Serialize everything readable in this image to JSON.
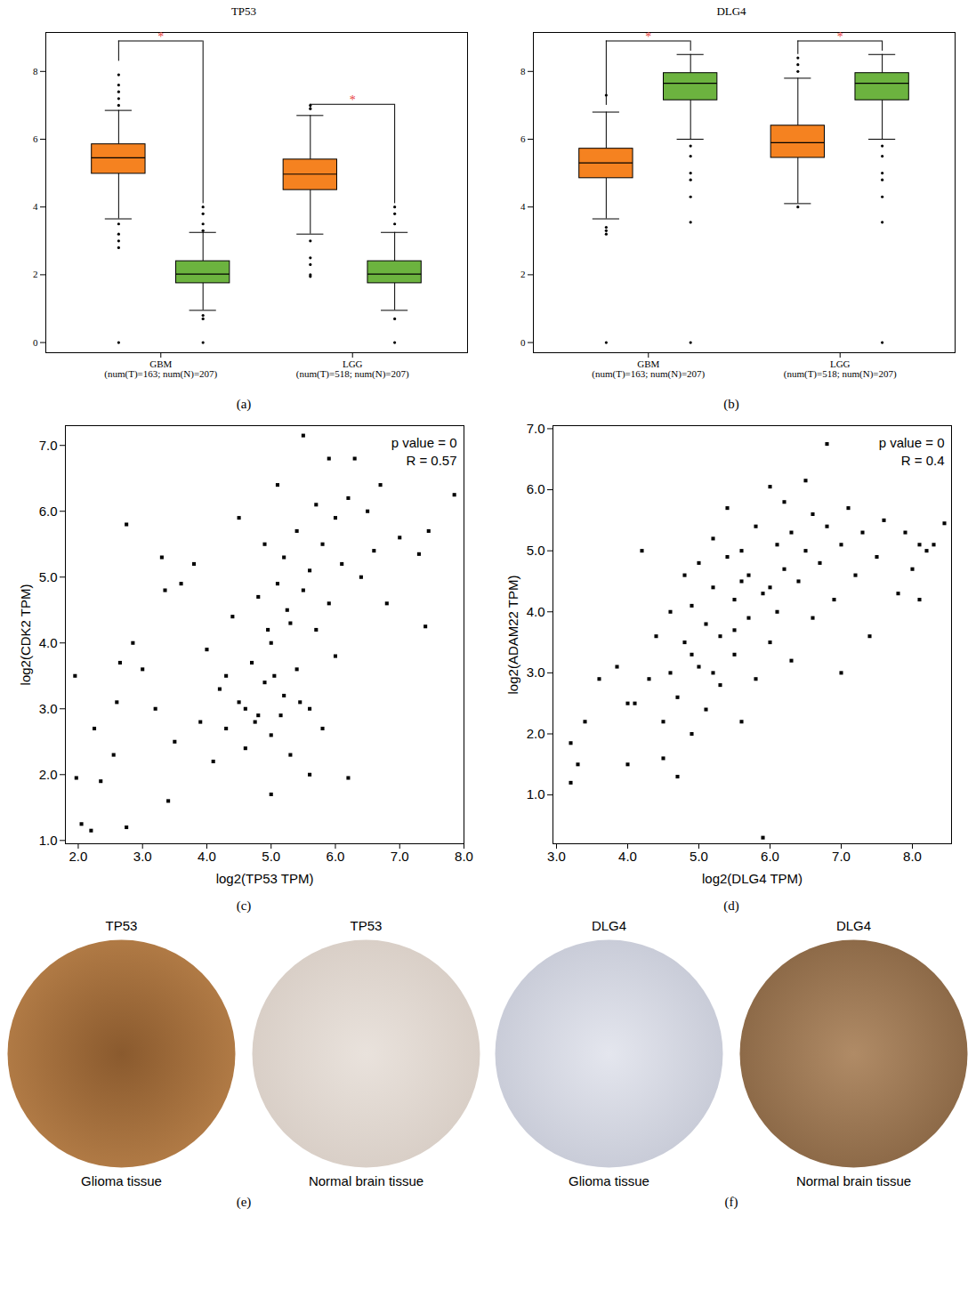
{
  "chart_data": [
    {
      "type": "box",
      "panel": "(a)",
      "title": "TP53",
      "categories": [
        "GBM",
        "LGG"
      ],
      "category_notes": [
        "(num(T)=163; num(N)=207)",
        "(num(T)=518; num(N)=207)"
      ],
      "ylim": [
        -0.3,
        9.15
      ],
      "yticks": [
        0,
        2,
        4,
        6,
        8
      ],
      "grid": false,
      "groups": [
        {
          "category": "GBM",
          "boxes": [
            {
              "color": "#f58220",
              "whisker_low": 3.65,
              "q1": 4.98,
              "median": 5.45,
              "q3": 5.85,
              "whisker_high": 6.85,
              "outliers": [
                7.9,
                7.6,
                7.4,
                7.2,
                7.0,
                3.5,
                3.2,
                3.0,
                2.8,
                0
              ]
            },
            {
              "color": "#6cb33f",
              "whisker_low": 0.95,
              "q1": 1.75,
              "median": 2.02,
              "q3": 2.4,
              "whisker_high": 3.25,
              "outliers": [
                4.0,
                3.8,
                3.5,
                3.3,
                0.8,
                0.7,
                0
              ]
            }
          ],
          "bracket": {
            "y": 8.9,
            "left_end": 8.3,
            "right_end": 4.1,
            "label": "*",
            "color": "#e8413c"
          }
        },
        {
          "category": "LGG",
          "boxes": [
            {
              "color": "#f58220",
              "whisker_low": 3.2,
              "q1": 4.5,
              "median": 4.97,
              "q3": 5.4,
              "whisker_high": 6.7,
              "outliers": [
                7.0,
                6.9,
                3.0,
                2.5,
                2.3,
                2.0,
                1.95
              ]
            },
            {
              "color": "#6cb33f",
              "whisker_low": 0.95,
              "q1": 1.75,
              "median": 2.02,
              "q3": 2.4,
              "whisker_high": 3.25,
              "outliers": [
                4.0,
                3.8,
                3.5,
                0.7,
                0
              ]
            }
          ],
          "bracket": {
            "y": 7.03,
            "left_end": 6.85,
            "right_end": 4.1,
            "label": "*",
            "color": "#e8413c"
          }
        }
      ]
    },
    {
      "type": "box",
      "panel": "(b)",
      "title": "DLG4",
      "categories": [
        "GBM",
        "LGG"
      ],
      "category_notes": [
        "(num(T)=163; num(N)=207)",
        "(num(T)=518; num(N)=207)"
      ],
      "ylim": [
        -0.3,
        9.15
      ],
      "yticks": [
        0,
        2,
        4,
        6,
        8
      ],
      "grid": false,
      "groups": [
        {
          "category": "GBM",
          "boxes": [
            {
              "color": "#f58220",
              "whisker_low": 3.65,
              "q1": 4.85,
              "median": 5.3,
              "q3": 5.72,
              "whisker_high": 6.8,
              "outliers": [
                7.3,
                3.4,
                3.3,
                3.2,
                0
              ]
            },
            {
              "color": "#6cb33f",
              "whisker_low": 6.0,
              "q1": 7.15,
              "median": 7.65,
              "q3": 7.95,
              "whisker_high": 8.5,
              "outliers": [
                5.8,
                5.5,
                5.0,
                4.8,
                4.3,
                3.55,
                0
              ]
            }
          ],
          "bracket": {
            "y": 8.9,
            "left_end": 7.0,
            "right_end": 8.6,
            "label": "*",
            "color": "#e8413c"
          }
        },
        {
          "category": "LGG",
          "boxes": [
            {
              "color": "#f58220",
              "whisker_low": 4.1,
              "q1": 5.45,
              "median": 5.9,
              "q3": 6.4,
              "whisker_high": 7.8,
              "outliers": [
                8.4,
                8.2,
                8.0,
                4.0
              ]
            },
            {
              "color": "#6cb33f",
              "whisker_low": 6.0,
              "q1": 7.15,
              "median": 7.65,
              "q3": 7.95,
              "whisker_high": 8.5,
              "outliers": [
                5.8,
                5.5,
                5.0,
                4.8,
                4.3,
                3.55,
                0
              ]
            }
          ],
          "bracket": {
            "y": 8.9,
            "left_end": 8.5,
            "right_end": 8.6,
            "label": "*",
            "color": "#e8413c"
          }
        }
      ]
    },
    {
      "type": "scatter",
      "panel": "(c)",
      "x_label": "log2(TP53 TPM)",
      "y_label": "log2(CDK2 TPM)",
      "annotations": [
        "p value = 0",
        "R = 0.57"
      ],
      "marker": "square",
      "color": "#000000",
      "grid": false,
      "xlim": [
        1.8,
        8.0
      ],
      "xticks": [
        2,
        3,
        4,
        5,
        6,
        7,
        8
      ],
      "ylim": [
        0.95,
        7.3
      ],
      "yticks": [
        1,
        2,
        3,
        4,
        5,
        6,
        7
      ],
      "x": [
        1.95,
        1.97,
        2.05,
        2.2,
        2.25,
        2.35,
        2.55,
        2.6,
        2.65,
        2.75,
        2.75,
        2.85,
        3.0,
        3.2,
        3.3,
        3.35,
        3.4,
        3.5,
        3.6,
        3.8,
        3.9,
        4.0,
        4.1,
        4.2,
        4.3,
        4.4,
        4.5,
        4.5,
        4.6,
        4.7,
        4.8,
        4.8,
        4.9,
        4.9,
        5.0,
        5.0,
        5.1,
        5.1,
        5.2,
        5.2,
        5.3,
        5.3,
        5.4,
        5.4,
        5.5,
        5.5,
        5.6,
        5.6,
        5.7,
        5.7,
        5.8,
        5.8,
        5.9,
        5.9,
        6.0,
        6.0,
        6.1,
        6.2,
        6.2,
        6.3,
        6.4,
        6.5,
        6.6,
        6.7,
        6.8,
        7.0,
        7.3,
        7.4,
        7.45,
        7.85,
        4.6,
        5.05,
        5.25,
        4.75,
        5.45,
        4.95,
        5.15,
        4.3,
        5.6,
        5.0
      ],
      "y": [
        3.5,
        1.95,
        1.25,
        1.15,
        2.7,
        1.9,
        2.3,
        3.1,
        3.7,
        1.2,
        5.8,
        4.0,
        3.6,
        3.0,
        5.3,
        4.8,
        1.6,
        2.5,
        4.9,
        5.2,
        2.8,
        3.9,
        2.2,
        3.3,
        2.7,
        4.4,
        5.9,
        3.1,
        2.4,
        3.7,
        4.7,
        2.9,
        5.5,
        3.4,
        4.0,
        2.6,
        6.4,
        4.9,
        3.2,
        5.3,
        4.3,
        2.3,
        5.7,
        3.6,
        7.15,
        4.8,
        3.0,
        5.1,
        6.1,
        4.2,
        5.5,
        2.7,
        6.8,
        4.6,
        5.9,
        3.8,
        5.2,
        6.2,
        1.95,
        6.8,
        5.0,
        6.0,
        5.4,
        6.4,
        4.6,
        5.6,
        5.35,
        4.25,
        5.7,
        6.25,
        3.0,
        3.5,
        4.5,
        2.8,
        3.1,
        4.2,
        2.9,
        3.5,
        2.0,
        1.7
      ]
    },
    {
      "type": "scatter",
      "panel": "(d)",
      "x_label": "log2(DLG4 TPM)",
      "y_label": "log2(ADAM22 TPM)",
      "annotations": [
        "p value = 0",
        "R = 0.4"
      ],
      "marker": "square",
      "color": "#000000",
      "grid": false,
      "xlim": [
        2.95,
        8.55
      ],
      "xticks": [
        3,
        4,
        5,
        6,
        7,
        8
      ],
      "ylim": [
        0.2,
        7.05
      ],
      "yticks": [
        1,
        2,
        3,
        4,
        5,
        6,
        7
      ],
      "x": [
        3.2,
        3.2,
        3.3,
        3.4,
        3.6,
        3.85,
        4.0,
        4.0,
        4.1,
        4.2,
        4.3,
        4.4,
        4.5,
        4.5,
        4.6,
        4.6,
        4.7,
        4.7,
        4.8,
        4.8,
        4.9,
        4.9,
        5.0,
        5.0,
        5.1,
        5.1,
        5.2,
        5.2,
        5.3,
        5.3,
        5.4,
        5.4,
        5.5,
        5.5,
        5.6,
        5.6,
        5.7,
        5.7,
        5.8,
        5.8,
        5.9,
        5.9,
        6.0,
        6.0,
        6.1,
        6.1,
        6.2,
        6.2,
        6.3,
        6.3,
        6.4,
        6.5,
        6.5,
        6.6,
        6.6,
        6.7,
        6.8,
        6.8,
        6.9,
        7.0,
        7.0,
        7.1,
        7.2,
        7.3,
        7.4,
        7.5,
        7.6,
        7.8,
        7.9,
        8.0,
        8.1,
        8.1,
        8.2,
        8.3,
        8.45,
        5.5,
        5.2,
        4.9,
        6.0,
        5.6
      ],
      "y": [
        1.2,
        1.85,
        1.5,
        2.2,
        2.9,
        3.1,
        1.5,
        2.5,
        2.5,
        5.0,
        2.9,
        3.6,
        1.6,
        2.2,
        3.0,
        4.0,
        1.3,
        2.6,
        3.5,
        4.6,
        2.0,
        4.1,
        3.1,
        4.8,
        2.4,
        3.8,
        4.4,
        5.2,
        2.8,
        3.6,
        4.9,
        5.7,
        3.3,
        4.2,
        2.2,
        5.0,
        3.9,
        4.6,
        5.4,
        2.9,
        0.3,
        4.3,
        6.05,
        3.5,
        5.1,
        4.0,
        4.7,
        5.8,
        3.2,
        5.3,
        4.5,
        6.15,
        5.0,
        3.9,
        5.6,
        4.8,
        6.75,
        5.4,
        4.2,
        3.0,
        5.1,
        5.7,
        4.6,
        5.3,
        3.6,
        4.9,
        5.5,
        4.3,
        5.3,
        4.7,
        5.1,
        4.2,
        5.0,
        5.1,
        5.45,
        3.7,
        3.0,
        3.3,
        4.4,
        4.5
      ]
    }
  ],
  "tissue_panels": [
    {
      "panel": "(e)",
      "images": [
        {
          "title": "TP53",
          "caption": "Glioma tissue"
        },
        {
          "title": "TP53",
          "caption": "Normal brain tissue"
        }
      ]
    },
    {
      "panel": "(f)",
      "images": [
        {
          "title": "DLG4",
          "caption": "Glioma tissue"
        },
        {
          "title": "DLG4",
          "caption": "Normal brain tissue"
        }
      ]
    }
  ]
}
